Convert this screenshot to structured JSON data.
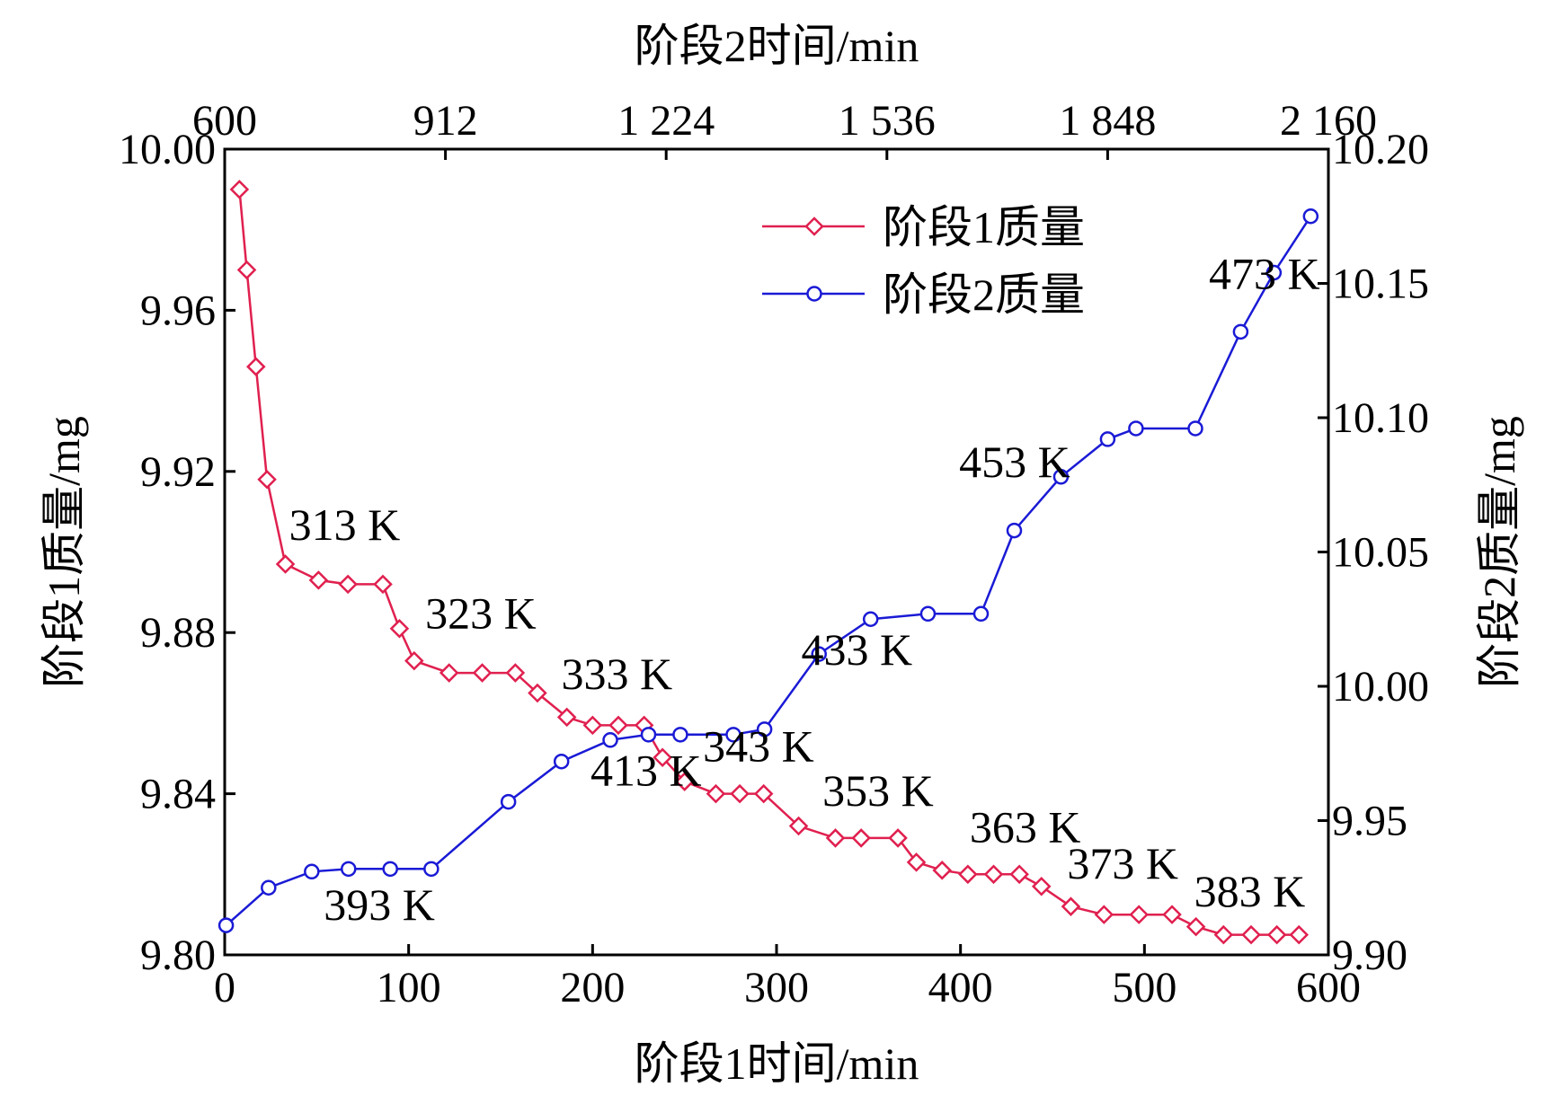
{
  "chart_data": {
    "type": "line",
    "title": "",
    "x_bottom": {
      "label": "阶段1时间/min",
      "range": [
        0,
        600
      ],
      "ticks": [
        "0",
        "100",
        "200",
        "300",
        "400",
        "500",
        "600"
      ]
    },
    "x_top": {
      "label": "阶段2时间/min",
      "range": [
        600,
        2160
      ],
      "ticks": [
        "600",
        "912",
        "1 224",
        "1 536",
        "1 848",
        "2 160"
      ]
    },
    "y_left": {
      "label": "阶段1质量/mg",
      "range": [
        9.8,
        10.0
      ],
      "ticks": [
        "9.80",
        "9.84",
        "9.88",
        "9.92",
        "9.96",
        "10.00"
      ]
    },
    "y_right": {
      "label": "阶段2质量/mg",
      "range": [
        9.9,
        10.2
      ],
      "ticks": [
        "9.90",
        "9.95",
        "10.00",
        "10.05",
        "10.10",
        "10.15",
        "10.20"
      ]
    },
    "legend": {
      "position": "top-right",
      "items": [
        "阶段1质量",
        "阶段2质量"
      ]
    },
    "series": [
      {
        "name": "阶段1质量",
        "color": "#e0204f",
        "marker": "diamond",
        "axes": "bottom-left",
        "x": [
          8,
          12,
          17,
          23,
          33,
          51,
          67,
          86,
          95,
          103,
          122,
          140,
          158,
          170,
          186,
          200,
          214,
          228,
          238,
          250,
          267,
          280,
          293,
          312,
          332,
          346,
          366,
          376,
          390,
          404,
          418,
          432,
          444,
          460,
          478,
          497,
          515,
          528,
          543,
          558,
          572,
          584
        ],
        "y": [
          9.99,
          9.97,
          9.946,
          9.918,
          9.897,
          9.893,
          9.892,
          9.892,
          9.881,
          9.873,
          9.87,
          9.87,
          9.87,
          9.865,
          9.859,
          9.857,
          9.857,
          9.857,
          9.849,
          9.843,
          9.84,
          9.84,
          9.84,
          9.832,
          9.829,
          9.829,
          9.829,
          9.823,
          9.821,
          9.82,
          9.82,
          9.82,
          9.817,
          9.812,
          9.81,
          9.81,
          9.81,
          9.807,
          9.805,
          9.805,
          9.805,
          9.805
        ]
      },
      {
        "name": "阶段2质量",
        "color": "#1a1ad6",
        "marker": "circle",
        "axes": "top-right",
        "x": [
          602,
          662,
          723,
          775,
          834,
          892,
          1001,
          1076,
          1145,
          1199,
          1244,
          1319,
          1363,
          1440,
          1513,
          1594,
          1669,
          1716,
          1782,
          1848,
          1888,
          1972,
          2036,
          2083,
          2135
        ],
        "y": [
          9.911,
          9.925,
          9.931,
          9.932,
          9.932,
          9.932,
          9.957,
          9.972,
          9.98,
          9.982,
          9.982,
          9.982,
          9.984,
          10.012,
          10.025,
          10.027,
          10.027,
          10.058,
          10.078,
          10.092,
          10.096,
          10.096,
          10.132,
          10.154,
          10.175
        ]
      }
    ],
    "annotations_stage1": [
      {
        "text": "313 K",
        "x": 35,
        "y": 9.903
      },
      {
        "text": "323 K",
        "x": 109,
        "y": 9.881
      },
      {
        "text": "333 K",
        "x": 183,
        "y": 9.866
      },
      {
        "text": "343 K",
        "x": 260,
        "y": 9.848
      },
      {
        "text": "353 K",
        "x": 325,
        "y": 9.837
      },
      {
        "text": "363 K",
        "x": 405,
        "y": 9.828
      },
      {
        "text": "373 K",
        "x": 458,
        "y": 9.819
      },
      {
        "text": "383 K",
        "x": 527,
        "y": 9.812
      }
    ],
    "annotations_stage2": [
      {
        "text": "393 K",
        "x": 740,
        "y": 9.913
      },
      {
        "text": "413 K",
        "x": 1117,
        "y": 9.963
      },
      {
        "text": "433 K",
        "x": 1415,
        "y": 10.008
      },
      {
        "text": "453 K",
        "x": 1638,
        "y": 10.078
      },
      {
        "text": "473 K",
        "x": 1991,
        "y": 10.148
      }
    ]
  }
}
